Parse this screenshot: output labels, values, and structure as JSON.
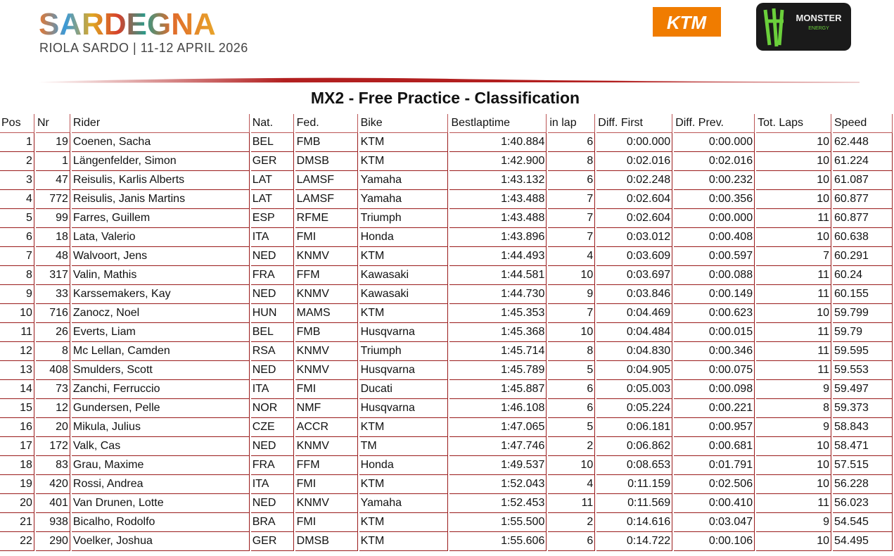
{
  "header": {
    "event": "SARDEGNA",
    "subtitle": "RIOLA SARDO | 11-12 APRIL 2026",
    "sponsor_1": "KTM",
    "sponsor_2": "MONSTER",
    "sponsor_2_sub": "ENERGY"
  },
  "title": "MX2 - Free Practice - Classification",
  "table": {
    "columns": [
      "Pos",
      "Nr",
      "Rider",
      "Nat.",
      "Fed.",
      "Bike",
      "Bestlaptime",
      "in lap",
      "Diff. First",
      "Diff. Prev.",
      "Tot. Laps",
      "Speed"
    ],
    "rows": [
      [
        1,
        19,
        "Coenen, Sacha",
        "BEL",
        "FMB",
        "KTM",
        "1:40.884",
        6,
        "0:00.000",
        "0:00.000",
        10,
        62.448
      ],
      [
        2,
        1,
        "Längenfelder, Simon",
        "GER",
        "DMSB",
        "KTM",
        "1:42.900",
        8,
        "0:02.016",
        "0:02.016",
        10,
        61.224
      ],
      [
        3,
        47,
        "Reisulis, Karlis Alberts",
        "LAT",
        "LAMSF",
        "Yamaha",
        "1:43.132",
        6,
        "0:02.248",
        "0:00.232",
        10,
        61.087
      ],
      [
        4,
        772,
        "Reisulis, Janis Martins",
        "LAT",
        "LAMSF",
        "Yamaha",
        "1:43.488",
        7,
        "0:02.604",
        "0:00.356",
        10,
        60.877
      ],
      [
        5,
        99,
        "Farres, Guillem",
        "ESP",
        "RFME",
        "Triumph",
        "1:43.488",
        7,
        "0:02.604",
        "0:00.000",
        11,
        60.877
      ],
      [
        6,
        18,
        "Lata, Valerio",
        "ITA",
        "FMI",
        "Honda",
        "1:43.896",
        7,
        "0:03.012",
        "0:00.408",
        10,
        60.638
      ],
      [
        7,
        48,
        "Walvoort, Jens",
        "NED",
        "KNMV",
        "KTM",
        "1:44.493",
        4,
        "0:03.609",
        "0:00.597",
        7,
        60.291
      ],
      [
        8,
        317,
        "Valin, Mathis",
        "FRA",
        "FFM",
        "Kawasaki",
        "1:44.581",
        10,
        "0:03.697",
        "0:00.088",
        11,
        60.24
      ],
      [
        9,
        33,
        "Karssemakers, Kay",
        "NED",
        "KNMV",
        "Kawasaki",
        "1:44.730",
        9,
        "0:03.846",
        "0:00.149",
        11,
        60.155
      ],
      [
        10,
        716,
        "Zanocz, Noel",
        "HUN",
        "MAMS",
        "KTM",
        "1:45.353",
        7,
        "0:04.469",
        "0:00.623",
        10,
        59.799
      ],
      [
        11,
        26,
        "Everts, Liam",
        "BEL",
        "FMB",
        "Husqvarna",
        "1:45.368",
        10,
        "0:04.484",
        "0:00.015",
        11,
        59.79
      ],
      [
        12,
        8,
        "Mc Lellan, Camden",
        "RSA",
        "KNMV",
        "Triumph",
        "1:45.714",
        8,
        "0:04.830",
        "0:00.346",
        11,
        59.595
      ],
      [
        13,
        408,
        "Smulders, Scott",
        "NED",
        "KNMV",
        "Husqvarna",
        "1:45.789",
        5,
        "0:04.905",
        "0:00.075",
        11,
        59.553
      ],
      [
        14,
        73,
        "Zanchi, Ferruccio",
        "ITA",
        "FMI",
        "Ducati",
        "1:45.887",
        6,
        "0:05.003",
        "0:00.098",
        9,
        59.497
      ],
      [
        15,
        12,
        "Gundersen, Pelle",
        "NOR",
        "NMF",
        "Husqvarna",
        "1:46.108",
        6,
        "0:05.224",
        "0:00.221",
        8,
        59.373
      ],
      [
        16,
        20,
        "Mikula, Julius",
        "CZE",
        "ACCR",
        "KTM",
        "1:47.065",
        5,
        "0:06.181",
        "0:00.957",
        9,
        58.843
      ],
      [
        17,
        172,
        "Valk, Cas",
        "NED",
        "KNMV",
        "TM",
        "1:47.746",
        2,
        "0:06.862",
        "0:00.681",
        10,
        58.471
      ],
      [
        18,
        83,
        "Grau, Maxime",
        "FRA",
        "FFM",
        "Honda",
        "1:49.537",
        10,
        "0:08.653",
        "0:01.791",
        10,
        57.515
      ],
      [
        19,
        420,
        "Rossi, Andrea",
        "ITA",
        "FMI",
        "KTM",
        "1:52.043",
        4,
        "0:11.159",
        "0:02.506",
        10,
        56.228
      ],
      [
        20,
        401,
        "Van Drunen, Lotte",
        "NED",
        "KNMV",
        "Yamaha",
        "1:52.453",
        11,
        "0:11.569",
        "0:00.410",
        11,
        56.023
      ],
      [
        21,
        938,
        "Bicalho, Rodolfo",
        "BRA",
        "FMI",
        "KTM",
        "1:55.500",
        2,
        "0:14.616",
        "0:03.047",
        9,
        54.545
      ],
      [
        22,
        290,
        "Voelker, Joshua",
        "GER",
        "DMSB",
        "KTM",
        "1:55.606",
        6,
        "0:14.722",
        "0:00.106",
        10,
        54.495
      ]
    ]
  }
}
